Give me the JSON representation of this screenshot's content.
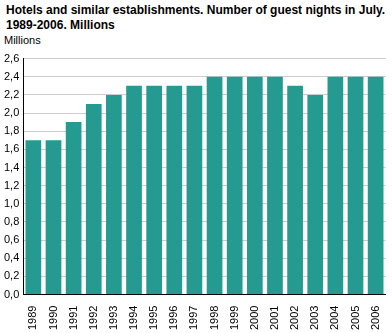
{
  "chart_data": {
    "type": "bar",
    "title": "Hotels and similar establishments. Number of guest nights in July. 1989-2006. Millions",
    "y_label": "Millions",
    "categories": [
      "1989",
      "1990",
      "1991",
      "1992",
      "1993",
      "1994",
      "1995",
      "1996",
      "1997",
      "1998",
      "1999",
      "2000",
      "2001",
      "2002",
      "2003",
      "2004",
      "2005",
      "2006"
    ],
    "values": [
      1.7,
      1.7,
      1.9,
      2.1,
      2.2,
      2.3,
      2.3,
      2.3,
      2.3,
      2.4,
      2.4,
      2.4,
      2.4,
      2.3,
      2.2,
      2.4,
      2.4,
      2.4
    ],
    "color": "#249a91",
    "ylim": [
      0,
      2.6
    ],
    "yticks": [
      {
        "value": 0,
        "label": "0,0"
      },
      {
        "value": 0.2,
        "label": "0,2"
      },
      {
        "value": 0.4,
        "label": "0,4"
      },
      {
        "value": 0.6,
        "label": "0,6"
      },
      {
        "value": 0.8,
        "label": "0,8"
      },
      {
        "value": 1.0,
        "label": "1,0"
      },
      {
        "value": 1.2,
        "label": "1,2"
      },
      {
        "value": 1.4,
        "label": "1,4"
      },
      {
        "value": 1.6,
        "label": "1,6"
      },
      {
        "value": 1.8,
        "label": "1,8"
      },
      {
        "value": 2.0,
        "label": "2,0"
      },
      {
        "value": 2.2,
        "label": "2,2"
      },
      {
        "value": 2.4,
        "label": "2,4"
      },
      {
        "value": 2.6,
        "label": "2,6"
      }
    ],
    "grid": true
  }
}
